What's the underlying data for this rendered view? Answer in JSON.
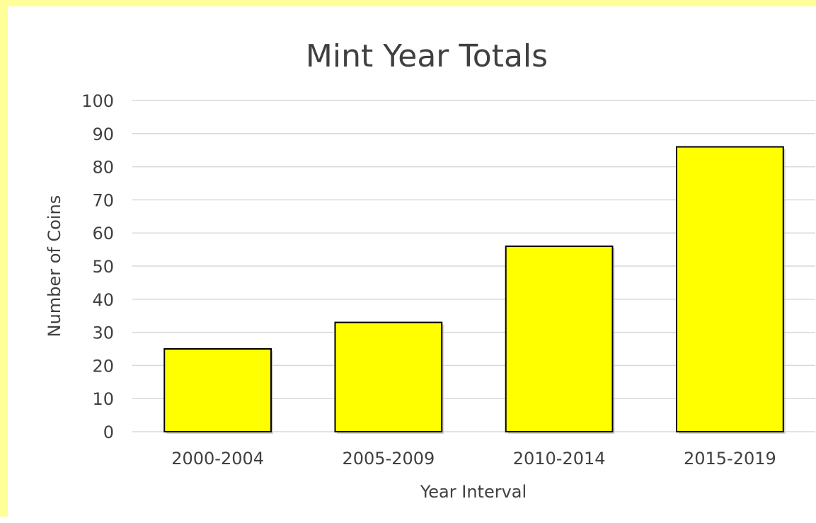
{
  "colors": {
    "frame": "#ffff9a",
    "bar_fill": "#ffff00",
    "bar_stroke": "#000000",
    "grid": "#d9d9d9",
    "text": "#404040"
  },
  "chart_data": {
    "type": "bar",
    "title": "Mint Year Totals",
    "xlabel": "Year Interval",
    "ylabel": "Number of Coins",
    "categories": [
      "2000-2004",
      "2005-2009",
      "2010-2014",
      "2015-2019"
    ],
    "values": [
      25,
      33,
      56,
      86
    ],
    "ylim": [
      0,
      100
    ],
    "ytick_step": 10,
    "grid": true,
    "legend": "none"
  }
}
